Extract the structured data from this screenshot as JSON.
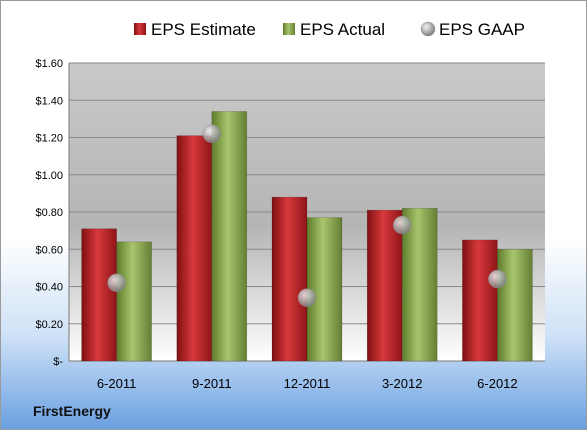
{
  "company": "FirstEnergy",
  "chart_data": {
    "type": "bar",
    "categories": [
      "6-2011",
      "9-2011",
      "12-2011",
      "3-2012",
      "6-2012"
    ],
    "series": [
      {
        "name": "EPS Estimate",
        "kind": "bar",
        "color": "#c0232a",
        "values": [
          0.71,
          1.21,
          0.88,
          0.81,
          0.65
        ]
      },
      {
        "name": "EPS Actual",
        "kind": "bar",
        "color": "#8fae52",
        "values": [
          0.64,
          1.34,
          0.77,
          0.82,
          0.6
        ]
      },
      {
        "name": "EPS GAAP",
        "kind": "point",
        "color": "#a9a9a9",
        "values": [
          0.42,
          1.22,
          0.34,
          0.73,
          0.44
        ]
      }
    ],
    "yticks": [
      "$-",
      "$0.20",
      "$0.40",
      "$0.60",
      "$0.80",
      "$1.00",
      "$1.20",
      "$1.40",
      "$1.60"
    ],
    "ylim": [
      0,
      1.6
    ],
    "grid": true,
    "legend_position": "top"
  }
}
